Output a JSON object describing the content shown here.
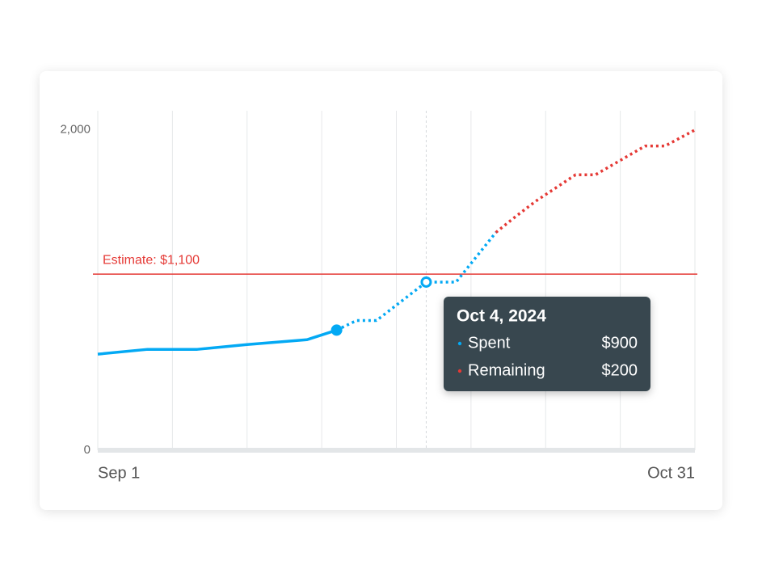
{
  "chart_data": {
    "type": "line",
    "x": [
      "2024-09-01",
      "2024-09-06",
      "2024-09-11",
      "2024-09-16",
      "2024-09-22",
      "2024-09-25",
      "2024-09-27",
      "2024-09-29",
      "2024-10-04",
      "2024-10-07",
      "2024-10-11",
      "2024-10-13",
      "2024-10-15",
      "2024-10-19",
      "2024-10-21",
      "2024-10-26",
      "2024-10-28",
      "2024-10-31"
    ],
    "series": [
      {
        "name": "Spent",
        "color": "#03a9f4",
        "style": "solid",
        "values": [
          600,
          630,
          630,
          660,
          690,
          750,
          null,
          null,
          null,
          null,
          null,
          null,
          null,
          null,
          null,
          null,
          null,
          null
        ]
      },
      {
        "color": "#03a9f4",
        "style": "dotted",
        "values": [
          null,
          null,
          null,
          null,
          null,
          750,
          810,
          810,
          1050,
          1050,
          1360,
          null,
          null,
          null,
          null,
          null,
          null,
          null
        ]
      },
      {
        "name": "Remaining",
        "color": "#e53935",
        "style": "dotted",
        "values": [
          null,
          null,
          null,
          null,
          null,
          null,
          null,
          null,
          null,
          null,
          1360,
          1460,
          1555,
          1720,
          1720,
          1900,
          1900,
          2000
        ]
      }
    ],
    "xlim": [
      "2024-09-01",
      "2024-10-31"
    ],
    "xticks": [
      {
        "value": "2024-09-01",
        "label": "Sep 1"
      },
      {
        "value": "2024-10-31",
        "label": "Oct 31"
      }
    ],
    "ylim": [
      0,
      2120
    ],
    "yticks": [
      0,
      {
        "value": 2000,
        "label": "2,000"
      }
    ],
    "grid": true,
    "reference_line": {
      "value": 1100,
      "label": "Estimate: $1,100",
      "color": "#e53935"
    },
    "tooltip": {
      "x": "2024-10-04",
      "title": "Oct 4, 2024",
      "rows": [
        {
          "label": "Spent",
          "value": "$900"
        },
        {
          "label": "Remaining",
          "value": "$200"
        }
      ]
    }
  }
}
